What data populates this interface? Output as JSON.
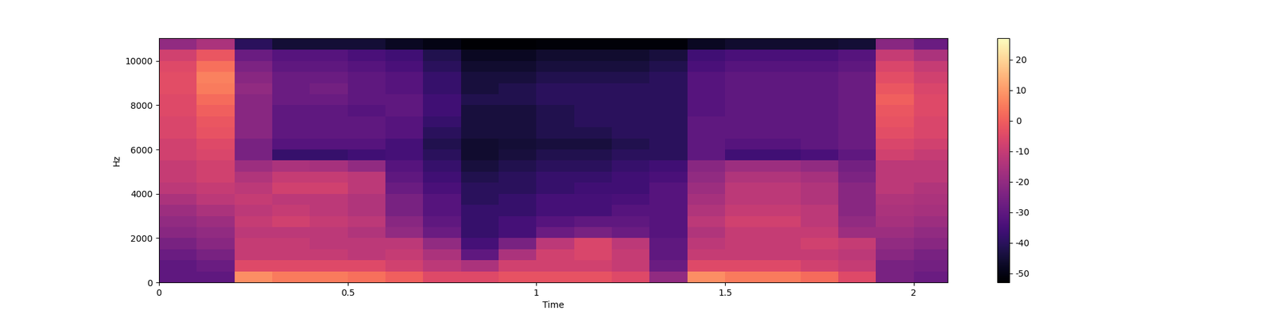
{
  "chart_data": {
    "type": "heatmap",
    "x_label": "Time",
    "y_label": "Hz",
    "xlim": [
      0,
      2.09
    ],
    "xticks": [
      0,
      0.5,
      1,
      1.5,
      2
    ],
    "ylim": [
      0,
      11025
    ],
    "yticks": [
      0,
      2000,
      4000,
      6000,
      8000,
      10000
    ],
    "color": "magma",
    "time_edges": [
      0,
      0.1,
      0.2,
      0.3,
      0.4,
      0.5,
      0.6,
      0.7,
      0.8,
      0.9,
      1.0,
      1.1,
      1.2,
      1.3,
      1.4,
      1.5,
      1.6,
      1.7,
      1.8,
      1.9,
      2.0,
      2.1
    ],
    "freq_edges": [
      0,
      500,
      1000,
      1500,
      2000,
      2500,
      3000,
      3500,
      4000,
      4500,
      5000,
      5500,
      6000,
      6500,
      7000,
      7500,
      8000,
      8500,
      9000,
      9500,
      10000,
      10500,
      11025
    ],
    "frames_db": [
      [
        -30,
        -30,
        -28,
        -25,
        -22,
        -20,
        -18,
        -15,
        -12,
        -10,
        -10,
        -8,
        -8,
        -6,
        -6,
        -5,
        -5,
        -4,
        -4,
        -5,
        -8,
        -20
      ],
      [
        -30,
        -28,
        -25,
        -22,
        -20,
        -18,
        -15,
        -12,
        -10,
        -8,
        -8,
        -6,
        -5,
        -3,
        -2,
        0,
        2,
        5,
        6,
        3,
        -2,
        -15
      ],
      [
        8,
        -5,
        -10,
        -10,
        -12,
        -10,
        -12,
        -10,
        -12,
        -14,
        -18,
        -25,
        -25,
        -22,
        -22,
        -22,
        -22,
        -20,
        -22,
        -24,
        -28,
        -40
      ],
      [
        5,
        -5,
        -10,
        -10,
        -12,
        -8,
        -10,
        -12,
        -8,
        -10,
        -15,
        -38,
        -32,
        -30,
        -30,
        -30,
        -28,
        -28,
        -28,
        -30,
        -32,
        -45
      ],
      [
        5,
        -5,
        -10,
        -12,
        -12,
        -10,
        -12,
        -12,
        -8,
        -10,
        -16,
        -38,
        -32,
        -30,
        -30,
        -30,
        -28,
        -26,
        -28,
        -30,
        -32,
        -45
      ],
      [
        3,
        -5,
        -12,
        -12,
        -14,
        -12,
        -14,
        -14,
        -12,
        -12,
        -20,
        -36,
        -32,
        -30,
        -30,
        -32,
        -30,
        -30,
        -30,
        -32,
        -34,
        -45
      ],
      [
        0,
        -8,
        -10,
        -12,
        -20,
        -22,
        -25,
        -25,
        -28,
        -30,
        -32,
        -35,
        -35,
        -32,
        -32,
        -30,
        -30,
        -32,
        -32,
        -34,
        -36,
        -48
      ],
      [
        -5,
        -12,
        -15,
        -20,
        -28,
        -30,
        -32,
        -32,
        -34,
        -36,
        -38,
        -40,
        -42,
        -40,
        -38,
        -36,
        -36,
        -38,
        -38,
        -40,
        -42,
        -50
      ],
      [
        -5,
        -15,
        -30,
        -35,
        -38,
        -38,
        -38,
        -40,
        -40,
        -42,
        -44,
        -46,
        -46,
        -44,
        -44,
        -44,
        -42,
        -44,
        -44,
        -46,
        -48,
        -53
      ],
      [
        -3,
        -8,
        -15,
        -25,
        -35,
        -35,
        -38,
        -38,
        -40,
        -40,
        -42,
        -44,
        -45,
        -44,
        -44,
        -44,
        -42,
        -42,
        -44,
        -46,
        -48,
        -53
      ],
      [
        -3,
        -8,
        -8,
        -12,
        -28,
        -32,
        -35,
        -35,
        -38,
        -38,
        -40,
        -42,
        -44,
        -42,
        -42,
        -42,
        -40,
        -40,
        -42,
        -44,
        -46,
        -52
      ],
      [
        -3,
        -8,
        -6,
        -6,
        -25,
        -30,
        -35,
        -35,
        -36,
        -38,
        -40,
        -42,
        -44,
        -42,
        -40,
        -40,
        -40,
        -40,
        -42,
        -44,
        -46,
        -52
      ],
      [
        -5,
        -10,
        -10,
        -12,
        -28,
        -30,
        -32,
        -34,
        -36,
        -36,
        -38,
        -40,
        -42,
        -40,
        -40,
        -40,
        -40,
        -40,
        -42,
        -44,
        -46,
        -52
      ],
      [
        -20,
        -28,
        -30,
        -30,
        -32,
        -32,
        -32,
        -32,
        -32,
        -34,
        -36,
        -40,
        -40,
        -40,
        -40,
        -40,
        -40,
        -40,
        -40,
        -42,
        -44,
        -52
      ],
      [
        8,
        -5,
        -10,
        -12,
        -14,
        -12,
        -14,
        -16,
        -18,
        -20,
        -22,
        -30,
        -30,
        -30,
        -30,
        -32,
        -32,
        -32,
        -32,
        -34,
        -36,
        -48
      ],
      [
        5,
        -5,
        -10,
        -10,
        -10,
        -8,
        -10,
        -12,
        -12,
        -14,
        -18,
        -36,
        -32,
        -30,
        -30,
        -30,
        -30,
        -30,
        -30,
        -32,
        -34,
        -46
      ],
      [
        5,
        -5,
        -10,
        -10,
        -10,
        -8,
        -10,
        -12,
        -12,
        -14,
        -18,
        -36,
        -32,
        -30,
        -30,
        -30,
        -30,
        -30,
        -30,
        -32,
        -34,
        -46
      ],
      [
        2,
        -8,
        -10,
        -8,
        -10,
        -12,
        -12,
        -14,
        -14,
        -16,
        -20,
        -34,
        -30,
        -30,
        -30,
        -30,
        -30,
        -30,
        -30,
        -32,
        -34,
        -46
      ],
      [
        -5,
        -10,
        -12,
        -10,
        -18,
        -20,
        -22,
        -22,
        -22,
        -24,
        -26,
        -30,
        -28,
        -28,
        -28,
        -28,
        -28,
        -28,
        -28,
        -30,
        -32,
        -45
      ],
      [
        -25,
        -25,
        -22,
        -20,
        -18,
        -16,
        -15,
        -14,
        -12,
        -12,
        -12,
        -8,
        -6,
        -4,
        -3,
        -2,
        0,
        -2,
        -4,
        -6,
        -10,
        -22
      ],
      [
        -28,
        -26,
        -25,
        -22,
        -20,
        -18,
        -16,
        -15,
        -14,
        -12,
        -12,
        -10,
        -8,
        -6,
        -6,
        -5,
        -5,
        -6,
        -8,
        -10,
        -15,
        -28
      ]
    ],
    "colorbar_lim": [
      -53,
      27
    ],
    "colorbar_ticks": [
      -50,
      -40,
      -30,
      -20,
      -10,
      0,
      10,
      20
    ]
  }
}
